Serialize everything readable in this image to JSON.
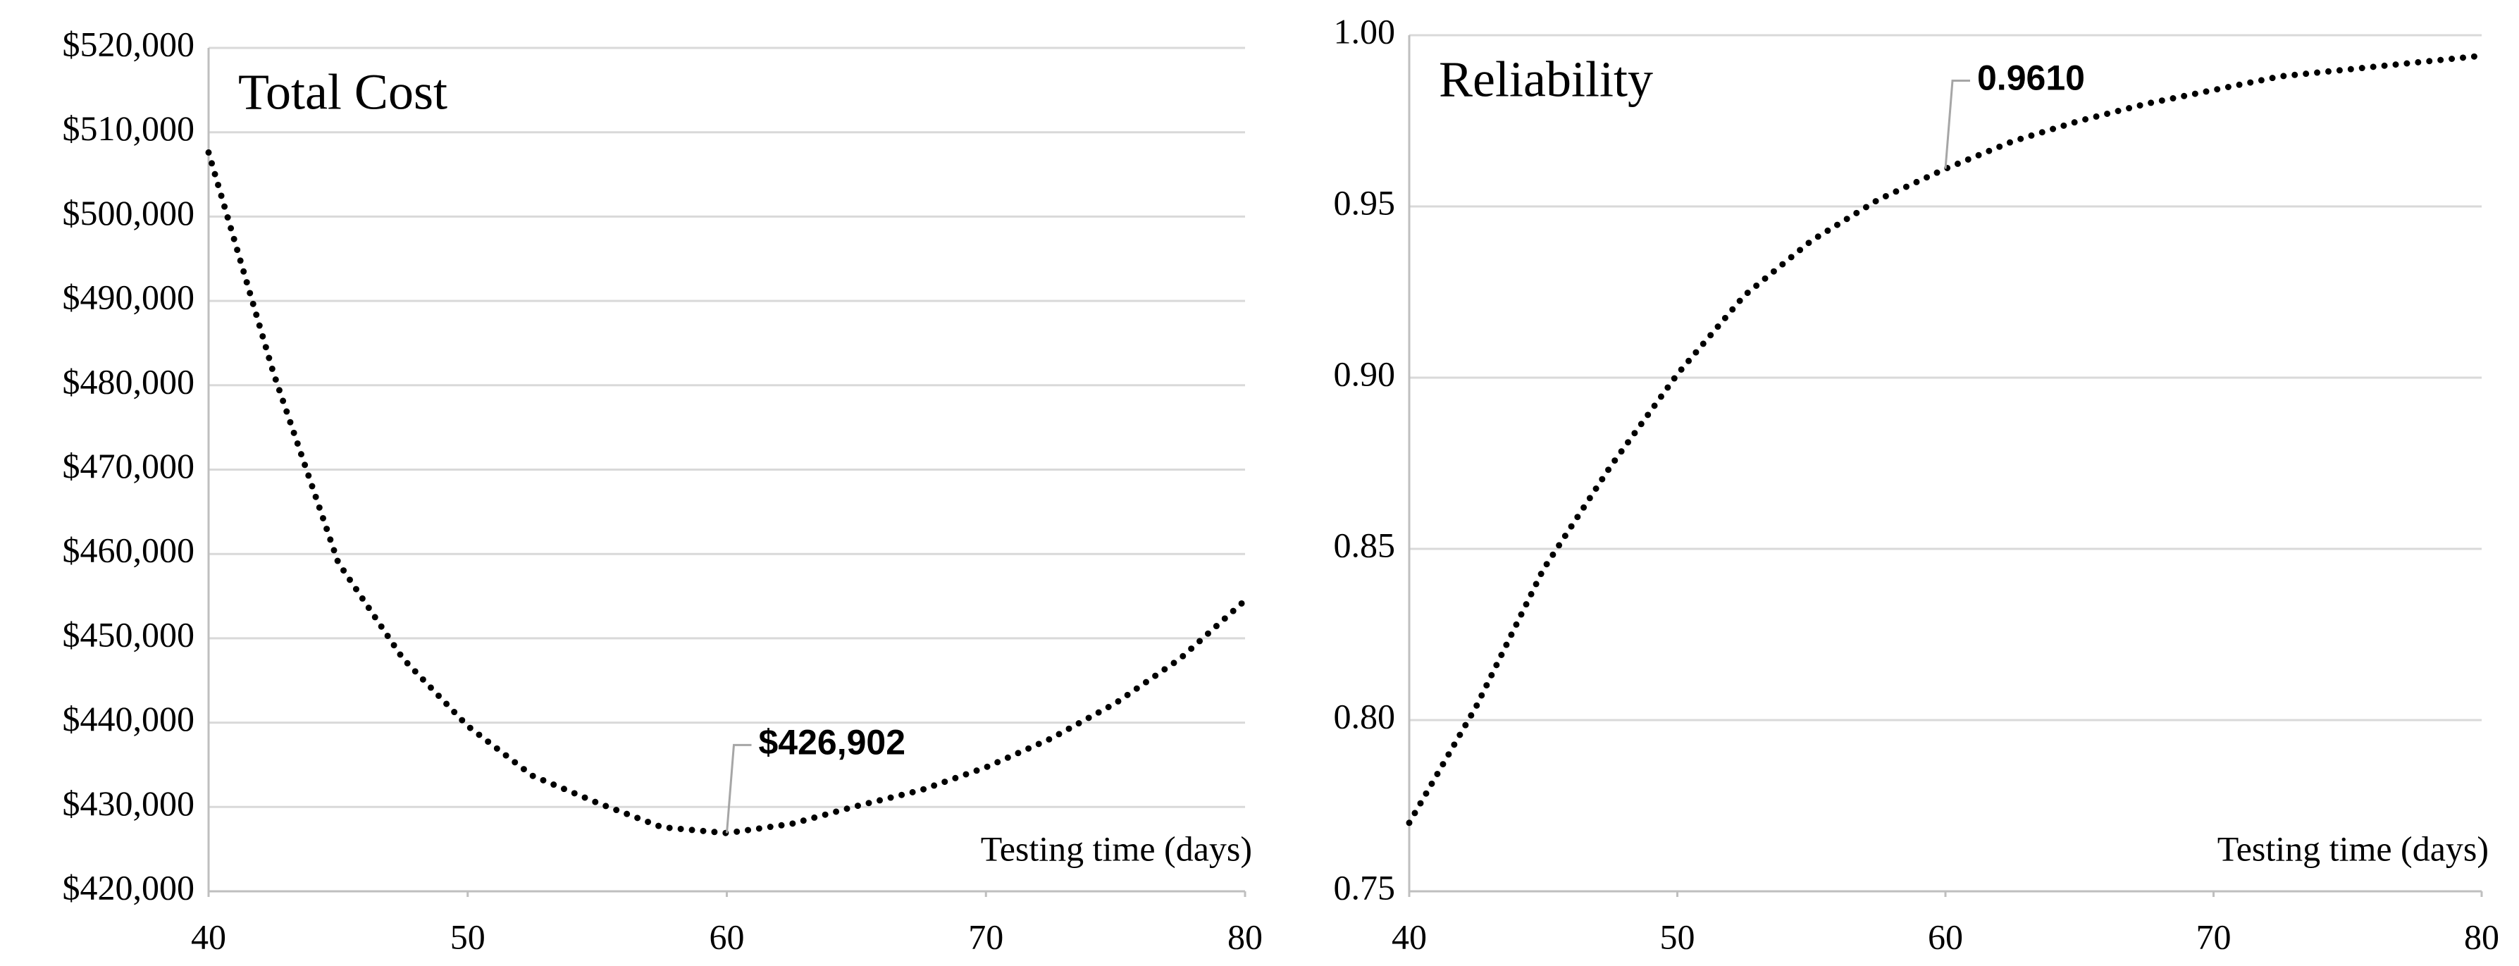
{
  "chart_data": [
    {
      "type": "line",
      "title": "Total Cost",
      "x_label": "Testing time (days)",
      "x": [
        40,
        42.5,
        45,
        47.5,
        50,
        52.5,
        55,
        57.5,
        60,
        62.5,
        65,
        67.5,
        70,
        72.5,
        75,
        77.5,
        80
      ],
      "values": [
        507600,
        481500,
        459000,
        447600,
        439600,
        433700,
        430500,
        427600,
        426902,
        428000,
        430100,
        432000,
        434700,
        438100,
        442300,
        447600,
        454500
      ],
      "value_labels": [
        null,
        null,
        null,
        null,
        null,
        null,
        null,
        null,
        "$426,902",
        null,
        null,
        null,
        null,
        null,
        null,
        null,
        null
      ],
      "color": "#000000",
      "xlim": [
        40,
        80
      ],
      "xticks": [
        40,
        50,
        60,
        70,
        80
      ],
      "ylim": [
        420000,
        520000
      ],
      "yticks": [
        {
          "value": 420000,
          "label": "$420,000"
        },
        {
          "value": 430000,
          "label": "$430,000"
        },
        {
          "value": 440000,
          "label": "$440,000"
        },
        {
          "value": 450000,
          "label": "$450,000"
        },
        {
          "value": 460000,
          "label": "$460,000"
        },
        {
          "value": 470000,
          "label": "$470,000"
        },
        {
          "value": 480000,
          "label": "$480,000"
        },
        {
          "value": 490000,
          "label": "$490,000"
        },
        {
          "value": 500000,
          "label": "$500,000"
        },
        {
          "value": 510000,
          "label": "$510,000"
        },
        {
          "value": 520000,
          "label": "$520,000"
        }
      ],
      "grid": true
    },
    {
      "type": "line",
      "title": "Reliability",
      "x_label": "Testing time (days)",
      "x": [
        40,
        42.5,
        45,
        47.5,
        50,
        52.5,
        55,
        57.5,
        60,
        62.5,
        65,
        67.5,
        70,
        72.5,
        75,
        77.5,
        80
      ],
      "values": [
        0.77,
        0.804,
        0.844,
        0.874,
        0.901,
        0.924,
        0.94,
        0.952,
        0.961,
        0.969,
        0.975,
        0.98,
        0.984,
        0.988,
        0.99,
        0.992,
        0.994
      ],
      "value_labels": [
        null,
        null,
        null,
        null,
        null,
        null,
        null,
        null,
        "0.9610",
        null,
        null,
        null,
        null,
        null,
        null,
        null,
        null
      ],
      "color": "#000000",
      "xlim": [
        40,
        80
      ],
      "xticks": [
        40,
        50,
        60,
        70,
        80
      ],
      "ylim": [
        0.75,
        1.0
      ],
      "yticks": [
        0.75,
        {
          "value": 0.8,
          "label": "0.80"
        },
        0.85,
        {
          "value": 0.9,
          "label": "0.90"
        },
        0.95,
        {
          "value": 1.0,
          "label": "1.00"
        }
      ],
      "grid": true
    }
  ]
}
